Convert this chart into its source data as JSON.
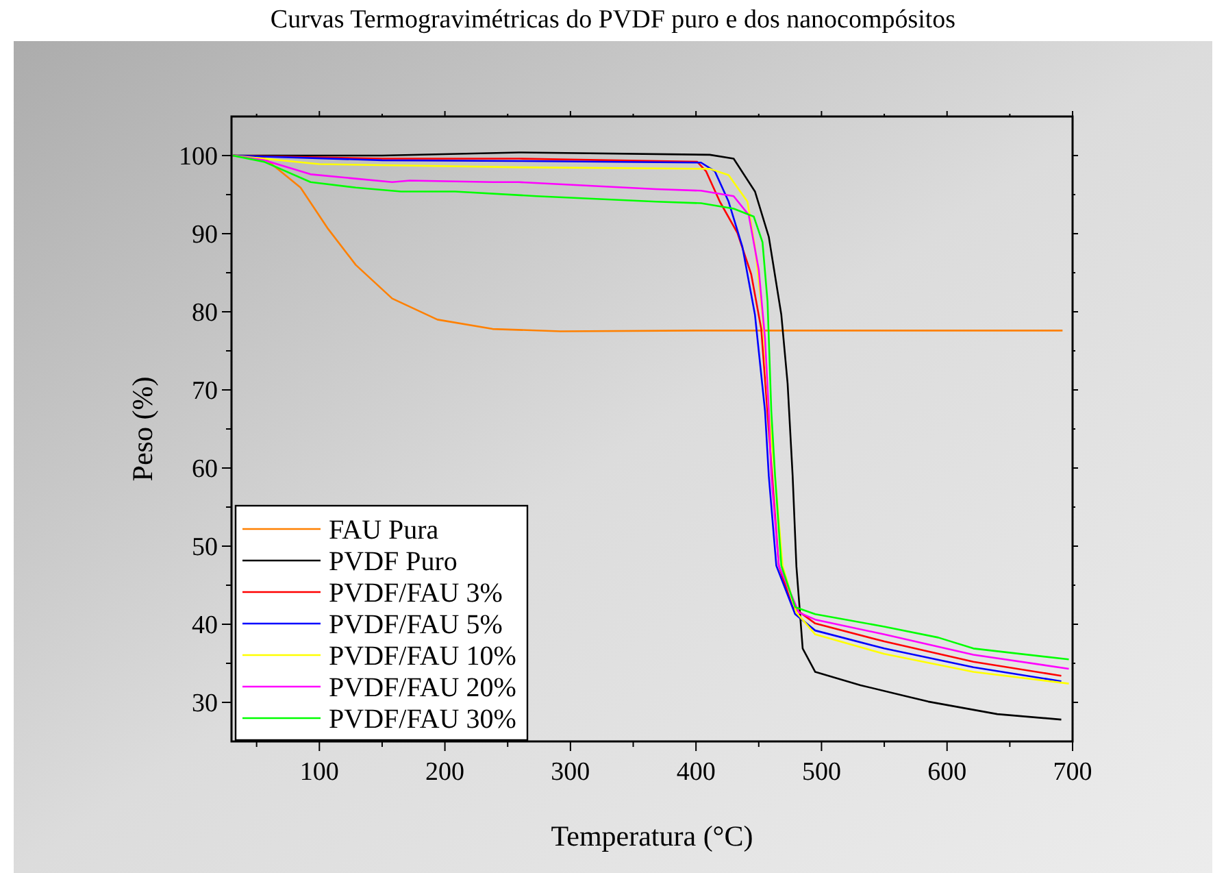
{
  "chart_data": {
    "type": "line",
    "title": "Curvas Termogravimétricas do PVDF puro e dos nanocompósitos",
    "xlabel": "Temperatura (°C)",
    "ylabel": "Peso (%)",
    "xlim": [
      30,
      700
    ],
    "xticks": [
      {
        "value": 50,
        "label": null
      },
      100,
      {
        "value": 150,
        "label": null
      },
      200,
      {
        "value": 250,
        "label": null
      },
      300,
      {
        "value": 350,
        "label": null
      },
      400,
      {
        "value": 450,
        "label": null
      },
      500,
      {
        "value": 550,
        "label": null
      },
      600,
      {
        "value": 650,
        "label": null
      },
      700
    ],
    "ylim": [
      25,
      105
    ],
    "yticks": [
      30,
      {
        "value": 35,
        "label": null
      },
      40,
      {
        "value": 45,
        "label": null
      },
      50,
      {
        "value": 55,
        "label": null
      },
      60,
      {
        "value": 65,
        "label": null
      },
      70,
      {
        "value": 75,
        "label": null
      },
      80,
      {
        "value": 85,
        "label": null
      },
      90,
      {
        "value": 95,
        "label": null
      },
      100
    ],
    "legend": "bottom left",
    "grid": false,
    "marker": "none",
    "line_style": "solid",
    "series": [
      {
        "name": "FAU Pura",
        "color": "#ff8000",
        "x": [
          31,
          56,
          85,
          107,
          129,
          158,
          194,
          238,
          292,
          400,
          500,
          600,
          692
        ],
        "values": [
          100,
          99.7,
          95.9,
          90.6,
          86,
          81.7,
          79,
          77.8,
          77.5,
          77.6,
          77.6,
          77.6,
          77.6
        ]
      },
      {
        "name": "PVDF Puro",
        "color": "#000000",
        "x": [
          31,
          150,
          259,
          411,
          430,
          447,
          458,
          468,
          473,
          477,
          480,
          485,
          495,
          531,
          585,
          640,
          691
        ],
        "values": [
          100,
          100,
          100.4,
          100.1,
          99.6,
          95.4,
          89.6,
          79.6,
          70.8,
          59,
          47.4,
          36.9,
          33.9,
          32.2,
          30.1,
          28.5,
          27.8
        ]
      },
      {
        "name": "PVDF/FAU 3%",
        "color": "#ff0000",
        "x": [
          31,
          150,
          259,
          401,
          408,
          419,
          433,
          444,
          452,
          466,
          477,
          495,
          550,
          621,
          691
        ],
        "values": [
          100,
          99.6,
          99.6,
          99.2,
          98,
          94.1,
          90.1,
          84.8,
          77.8,
          47.5,
          42.2,
          40.1,
          37.8,
          35.2,
          33.4
        ]
      },
      {
        "name": "PVDF/FAU 5%",
        "color": "#0000ff",
        "x": [
          31,
          150,
          259,
          404,
          415,
          426,
          437,
          447,
          455,
          458,
          464,
          479,
          495,
          550,
          621,
          691
        ],
        "values": [
          100,
          99.4,
          99.3,
          99.1,
          98,
          94.1,
          88.3,
          79.6,
          67.3,
          59,
          47.5,
          41.3,
          39.2,
          36.9,
          34.5,
          32.7
        ]
      },
      {
        "name": "PVDF/FAU 10%",
        "color": "#ffff00",
        "x": [
          31,
          100,
          259,
          411,
          426,
          441,
          447,
          453,
          458,
          463,
          469,
          480,
          495,
          550,
          621,
          697
        ],
        "values": [
          100,
          98.9,
          98.5,
          98.3,
          97.5,
          94.1,
          88.3,
          79.6,
          67.3,
          59,
          47.5,
          41.5,
          38.7,
          36.2,
          33.9,
          32.4
        ]
      },
      {
        "name": "PVDF/FAU 20%",
        "color": "#ff00ff",
        "x": [
          31,
          56,
          93,
          158,
          172,
          238,
          259,
          368,
          404,
          430,
          442,
          450,
          455,
          458,
          460,
          466,
          482,
          495,
          550,
          621,
          697
        ],
        "values": [
          100,
          99.4,
          97.6,
          96.6,
          96.8,
          96.6,
          96.6,
          95.7,
          95.5,
          94.8,
          92.4,
          85.4,
          76.6,
          67.3,
          59,
          47.5,
          41.5,
          40.6,
          38.7,
          36.1,
          34.3
        ]
      },
      {
        "name": "PVDF/FAU 30%",
        "color": "#00ff00",
        "x": [
          31,
          56,
          93,
          129,
          165,
          208,
          273,
          368,
          404,
          430,
          446,
          453,
          457,
          460,
          463,
          468,
          479,
          495,
          550,
          593,
          621,
          697
        ],
        "values": [
          100,
          99.2,
          96.6,
          95.9,
          95.4,
          95.4,
          94.8,
          94.1,
          93.9,
          93.2,
          92.2,
          88.9,
          81.3,
          67.3,
          59,
          47.5,
          42.2,
          41.3,
          39.7,
          38.3,
          36.9,
          35.5
        ]
      }
    ]
  }
}
